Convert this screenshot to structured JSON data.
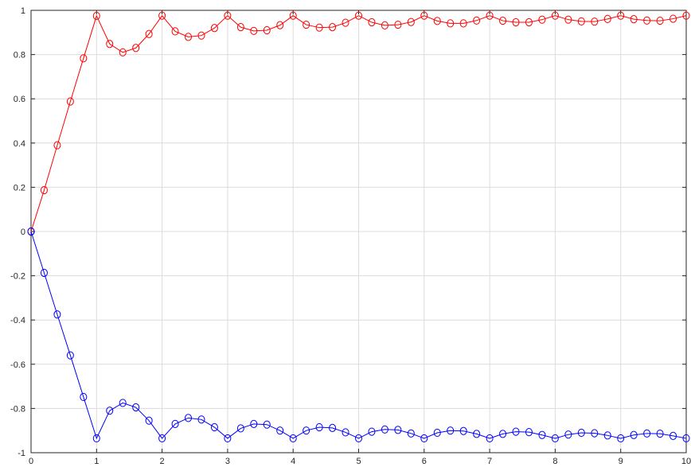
{
  "chart_data": {
    "type": "line",
    "title": "",
    "xlabel": "",
    "ylabel": "",
    "xlim": [
      0,
      10
    ],
    "ylim": [
      -1,
      1
    ],
    "xticks": [
      0,
      1,
      2,
      3,
      4,
      5,
      6,
      7,
      8,
      9,
      10
    ],
    "yticks": [
      -1,
      -0.8,
      -0.6,
      -0.4,
      -0.2,
      0,
      0.2,
      0.4,
      0.6,
      0.8,
      1
    ],
    "xtick_labels": [
      "0",
      "1",
      "2",
      "3",
      "4",
      "5",
      "6",
      "7",
      "8",
      "9",
      "10"
    ],
    "ytick_labels": [
      "-1",
      "-0.8",
      "-0.6",
      "-0.4",
      "-0.2",
      "0",
      "0.2",
      "0.4",
      "0.6",
      "0.8",
      "1"
    ],
    "grid": true,
    "legend": "none",
    "marker": "circle-open",
    "x": [
      0,
      0.2,
      0.4,
      0.6,
      0.8,
      1.0,
      1.2,
      1.4,
      1.6,
      1.8,
      2.0,
      2.2,
      2.4,
      2.6,
      2.8,
      3.0,
      3.2,
      3.4,
      3.6,
      3.8,
      4.0,
      4.2,
      4.4,
      4.6,
      4.8,
      5.0,
      5.2,
      5.4,
      5.6,
      5.8,
      6.0,
      6.2,
      6.4,
      6.6,
      6.8,
      7.0,
      7.2,
      7.4,
      7.6,
      7.8,
      8.0,
      8.2,
      8.4,
      8.6,
      8.8,
      9.0,
      9.2,
      9.4,
      9.6,
      9.8,
      10.0
    ],
    "series": [
      {
        "color": "#ff0000",
        "values": [
          0,
          0.187,
          0.39,
          0.588,
          0.783,
          0.975,
          0.848,
          0.81,
          0.83,
          0.893,
          0.976,
          0.905,
          0.88,
          0.886,
          0.92,
          0.976,
          0.924,
          0.907,
          0.91,
          0.933,
          0.976,
          0.935,
          0.922,
          0.924,
          0.944,
          0.976,
          0.946,
          0.932,
          0.935,
          0.947,
          0.976,
          0.952,
          0.941,
          0.941,
          0.954,
          0.976,
          0.953,
          0.946,
          0.946,
          0.958,
          0.976,
          0.958,
          0.95,
          0.949,
          0.961,
          0.976,
          0.96,
          0.954,
          0.953,
          0.962,
          0.976
        ]
      },
      {
        "color": "#0000ff",
        "values": [
          0,
          -0.187,
          -0.375,
          -0.56,
          -0.748,
          -0.935,
          -0.81,
          -0.775,
          -0.795,
          -0.855,
          -0.935,
          -0.87,
          -0.843,
          -0.85,
          -0.885,
          -0.935,
          -0.89,
          -0.87,
          -0.873,
          -0.9,
          -0.935,
          -0.9,
          -0.885,
          -0.888,
          -0.908,
          -0.935,
          -0.905,
          -0.895,
          -0.897,
          -0.913,
          -0.935,
          -0.91,
          -0.9,
          -0.902,
          -0.915,
          -0.935,
          -0.915,
          -0.905,
          -0.907,
          -0.92,
          -0.935,
          -0.918,
          -0.91,
          -0.912,
          -0.922,
          -0.935,
          -0.92,
          -0.913,
          -0.914,
          -0.924,
          -0.935
        ]
      }
    ]
  }
}
